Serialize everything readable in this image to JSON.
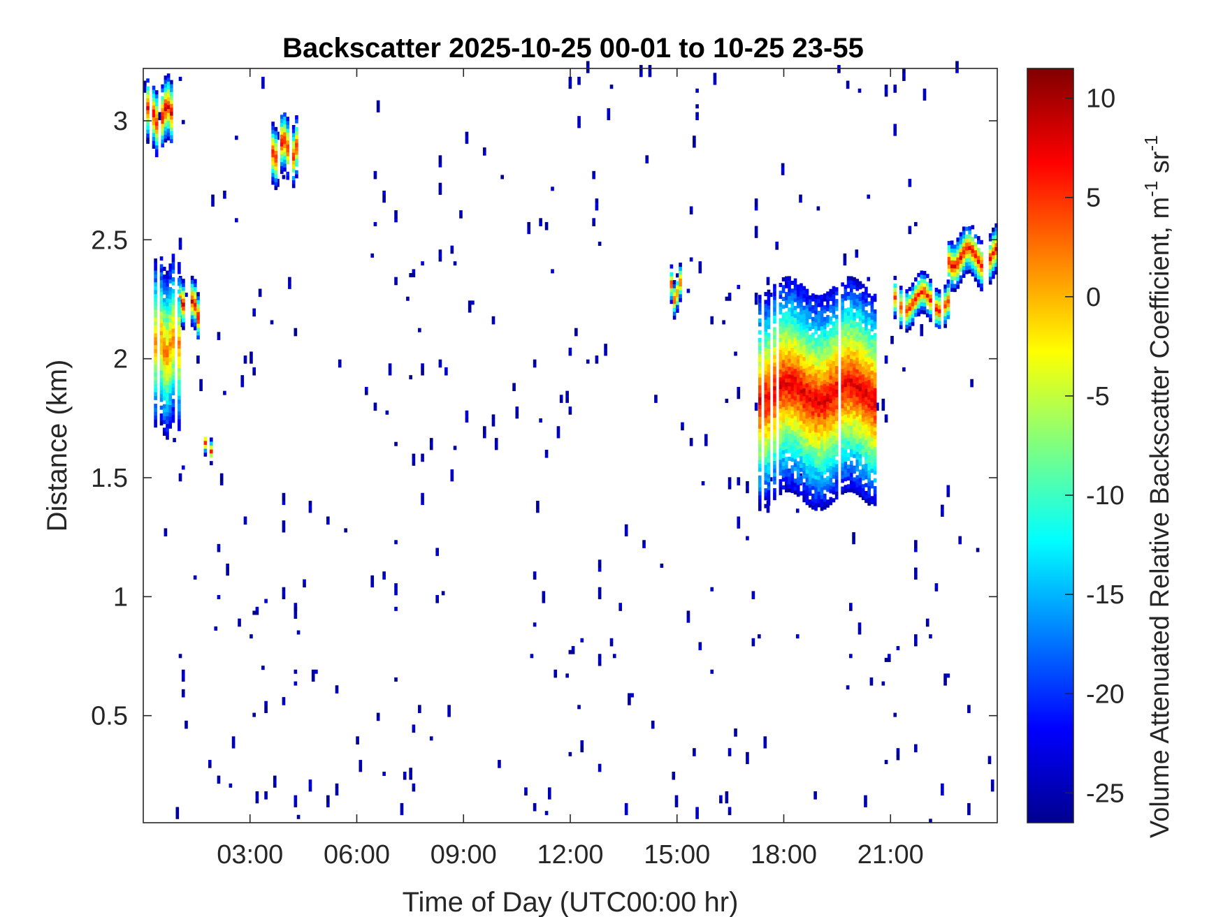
{
  "chart_data": {
    "type": "heatmap",
    "title": "Backscatter 2025-10-25 00-01 to 10-25 23-55",
    "xlabel": "Time of Day (UTC00:00 hr)",
    "ylabel": "Distance (km)",
    "colorbar_label": "Volume Attenuated Relative Backscatter Coefficient, m",
    "colorbar_sup1": "-1",
    "colorbar_unit2": " sr",
    "colorbar_sup2": "-1",
    "xlim": [
      0,
      24
    ],
    "ylim": [
      0.05,
      3.22
    ],
    "clim": [
      -26.5,
      11.5
    ],
    "x_ticks": [
      3,
      6,
      9,
      12,
      15,
      18,
      21
    ],
    "x_tick_labels": [
      "03:00",
      "06:00",
      "09:00",
      "12:00",
      "15:00",
      "18:00",
      "21:00"
    ],
    "y_ticks": [
      0.5,
      1,
      1.5,
      2,
      2.5,
      3
    ],
    "y_tick_labels": [
      "0.5",
      "1",
      "1.5",
      "2",
      "2.5",
      "3"
    ],
    "colorbar_ticks": [
      10,
      5,
      0,
      -5,
      -10,
      -15,
      -20,
      -25
    ],
    "colorbar_tick_labels": [
      "10",
      "5",
      "0",
      "-5",
      "-10",
      "-15",
      "-20",
      "-25"
    ],
    "colormap": "jet",
    "features": [
      {
        "name": "early high cloud",
        "t": [
          0.0,
          0.8
        ],
        "z_top": 3.15,
        "z_bottom": 2.88,
        "peak_value": 8
      },
      {
        "name": "high cloud patch 04:00",
        "t": [
          3.6,
          4.3
        ],
        "z_top": 3.0,
        "z_bottom": 2.75,
        "peak_value": 7
      },
      {
        "name": "mid cloud 01:00",
        "t": [
          1.0,
          1.5
        ],
        "z_top": 2.3,
        "z_bottom": 2.1,
        "peak_value": 8
      },
      {
        "name": "fragments 00:30-01:00",
        "t": [
          0.3,
          1.0
        ],
        "z_top": 2.4,
        "z_bottom": 1.7,
        "peak_value": 2
      },
      {
        "name": "fragment 01:45",
        "t": [
          1.7,
          1.9
        ],
        "z_top": 1.65,
        "z_bottom": 1.55,
        "peak_value": 6
      },
      {
        "name": "fragment 15:00",
        "t": [
          14.8,
          15.2
        ],
        "z_top": 2.35,
        "z_bottom": 2.2,
        "peak_value": 5
      },
      {
        "name": "evening cloud 17:30-20:30",
        "t": [
          17.2,
          20.6
        ],
        "z_top": 2.3,
        "z_bottom": 1.4,
        "peak_value": 8
      },
      {
        "name": "cloud layer 21:00-22:30",
        "t": [
          21.0,
          22.6
        ],
        "z_top": 2.32,
        "z_bottom": 2.15,
        "peak_value": 6
      },
      {
        "name": "cloud layer 22:30-24:00",
        "t": [
          22.6,
          24.0
        ],
        "z_top": 2.52,
        "z_bottom": 2.32,
        "peak_value": 7
      }
    ],
    "grid": false,
    "box": true
  }
}
